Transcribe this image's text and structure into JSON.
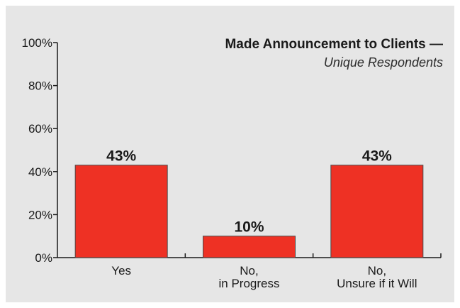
{
  "chart_data": {
    "type": "bar",
    "title": "Made Announcement to Clients —",
    "subtitle": "Unique Respondents",
    "categories": [
      [
        "Yes"
      ],
      [
        "No,",
        "in Progress"
      ],
      [
        "No,",
        "Unsure if it Will"
      ]
    ],
    "values": [
      43,
      10,
      43
    ],
    "data_labels": [
      "43%",
      "10%",
      "43%"
    ],
    "ylim": [
      0,
      100
    ],
    "yticks": [
      0,
      20,
      40,
      60,
      80,
      100
    ],
    "ytick_labels": [
      "0%",
      "20%",
      "40%",
      "60%",
      "80%",
      "100%"
    ],
    "xlabel": "",
    "ylabel": "",
    "grid": false,
    "bar_color": "#ee3124",
    "bar_stroke": "#4a4a4a",
    "background": "#e6e6e6"
  }
}
